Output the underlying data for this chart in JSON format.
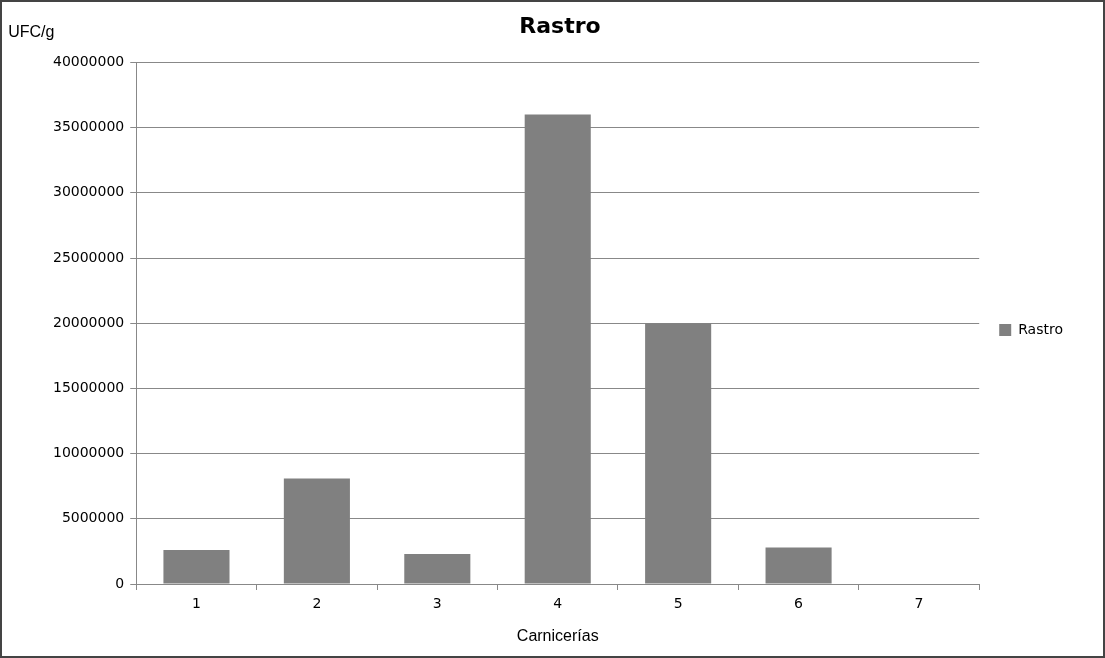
{
  "chart_data": {
    "type": "bar",
    "title": "Rastro",
    "xlabel": "Carnicerías",
    "ylabel": "UFC/g",
    "categories": [
      "1",
      "2",
      "3",
      "4",
      "5",
      "6",
      "7"
    ],
    "series": [
      {
        "name": "Rastro",
        "color": "#808080",
        "values": [
          2600000,
          8100000,
          2300000,
          36000000,
          20000000,
          2800000,
          0
        ]
      }
    ],
    "ylim": [
      0,
      40000000
    ],
    "yticks": [
      0,
      5000000,
      10000000,
      15000000,
      20000000,
      25000000,
      30000000,
      35000000,
      40000000
    ],
    "grid": "y",
    "legend": "right"
  }
}
